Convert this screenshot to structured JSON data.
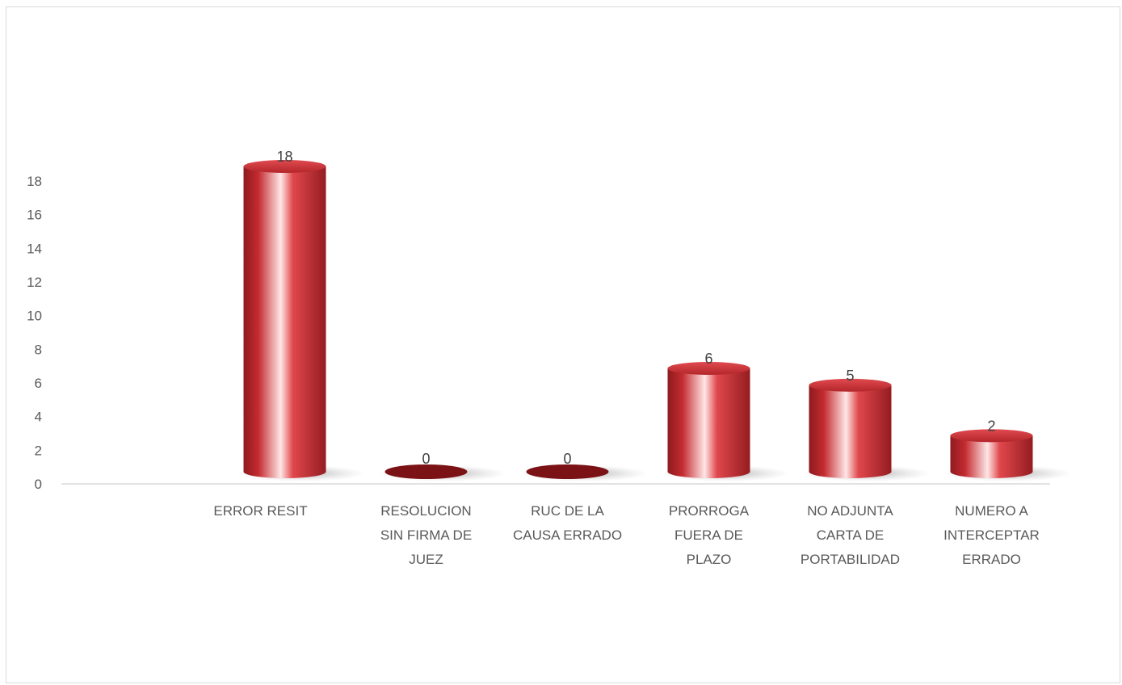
{
  "chart_data": {
    "type": "bar",
    "style": "3d-cylinder",
    "categories": [
      [
        "ERROR RESIT"
      ],
      [
        "RESOLUCION",
        "SIN FIRMA DE",
        "JUEZ"
      ],
      [
        "RUC DE LA",
        "CAUSA ERRADO"
      ],
      [
        "PRORROGA",
        "FUERA DE",
        "PLAZO"
      ],
      [
        "NO ADJUNTA",
        "CARTA DE",
        "PORTABILIDAD"
      ],
      [
        "NUMERO A",
        "INTERCEPTAR",
        "ERRADO"
      ]
    ],
    "values": [
      18,
      0,
      0,
      6,
      5,
      2
    ],
    "data_labels": [
      "18",
      "0",
      "0",
      "6",
      "5",
      "2"
    ],
    "ylim": [
      0,
      18
    ],
    "yticks": [
      0,
      2,
      4,
      6,
      8,
      10,
      12,
      14,
      16,
      18
    ],
    "title": "",
    "xlabel": "",
    "ylabel": "",
    "grid": false,
    "colors": {
      "bar": "#c0282d",
      "bar_highlight": "#ffe3e3",
      "bar_dark": "#7a1216",
      "axis": "#d9d9d9",
      "text": "#595959"
    }
  }
}
